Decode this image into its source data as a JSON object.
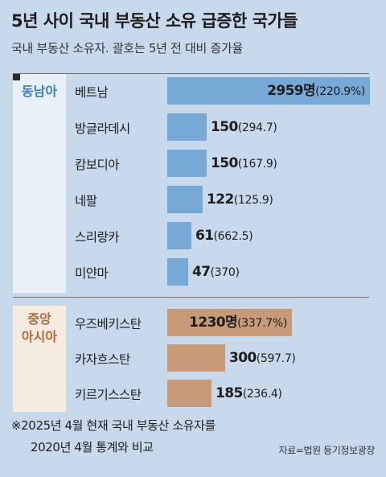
{
  "title": "5년 사이 국내 부동산 소유 급증한 국가들",
  "subtitle": "국내 부동산 소유자. 괄호는 5년 전 대비 증가율",
  "groups": {
    "sea": "동남아",
    "central_asia_line1": "중앙",
    "central_asia_line2": "아시아"
  },
  "note_line1": "※2025년 4월 현재 국내 부동산 소유자를",
  "note_line2": "2020년 4월 통계와 비교",
  "source": "자료=법원 등기정보광장",
  "colors": {
    "sea_bar": "#76a9d6",
    "ca_bar": "#c79b78",
    "sea_label": "#3d7fbf",
    "ca_label": "#b36a3a"
  },
  "chart_data": {
    "type": "bar",
    "orientation": "horizontal",
    "categories": [
      "베트남",
      "방글라데시",
      "캄보디아",
      "네팔",
      "스리랑카",
      "미얀마",
      "우즈베키스탄",
      "카자흐스탄",
      "키르기스스탄"
    ],
    "group_of": [
      "동남아",
      "동남아",
      "동남아",
      "동남아",
      "동남아",
      "동남아",
      "중앙 아시아",
      "중앙 아시아",
      "중앙 아시아"
    ],
    "values": [
      2959,
      150,
      150,
      122,
      61,
      47,
      1230,
      300,
      185
    ],
    "value_labels": [
      "2959명",
      "150",
      "150",
      "122",
      "61",
      "47",
      "1230명",
      "300",
      "185"
    ],
    "growth_labels": [
      "(220.9%)",
      "(294.7)",
      "(167.9)",
      "(125.9)",
      "(662.5)",
      "(370)",
      "(337.7%)",
      "(597.7)",
      "(236.4)"
    ],
    "growth_pct": [
      220.9,
      294.7,
      167.9,
      125.9,
      662.5,
      370,
      337.7,
      597.7,
      236.4
    ]
  }
}
